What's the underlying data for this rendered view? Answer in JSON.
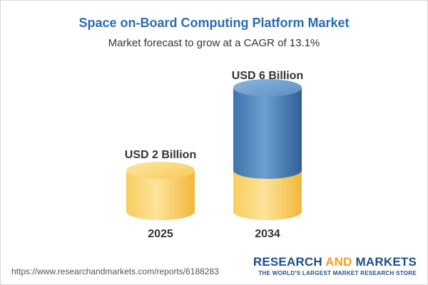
{
  "chart_data": {
    "type": "bar",
    "title": "Space on-Board Computing Platform Market",
    "subtitle": "Market forecast to grow at a CAGR of 13.1%",
    "categories": [
      "2025",
      "2034"
    ],
    "values": [
      2,
      6
    ],
    "value_labels": [
      "USD 2 Billion",
      "USD 6 Billion"
    ],
    "unit": "USD Billion",
    "style": "3d-cylinder",
    "colors": {
      "base": "#f5c24a",
      "growth": "#4a80b8"
    }
  },
  "footer": {
    "url": "https://www.researchandmarkets.com/reports/6188283",
    "brand_part1": "RESEARCH ",
    "brand_part2": "AND",
    "brand_part3": " MARKETS",
    "tagline": "THE WORLD'S LARGEST MARKET RESEARCH STORE"
  }
}
